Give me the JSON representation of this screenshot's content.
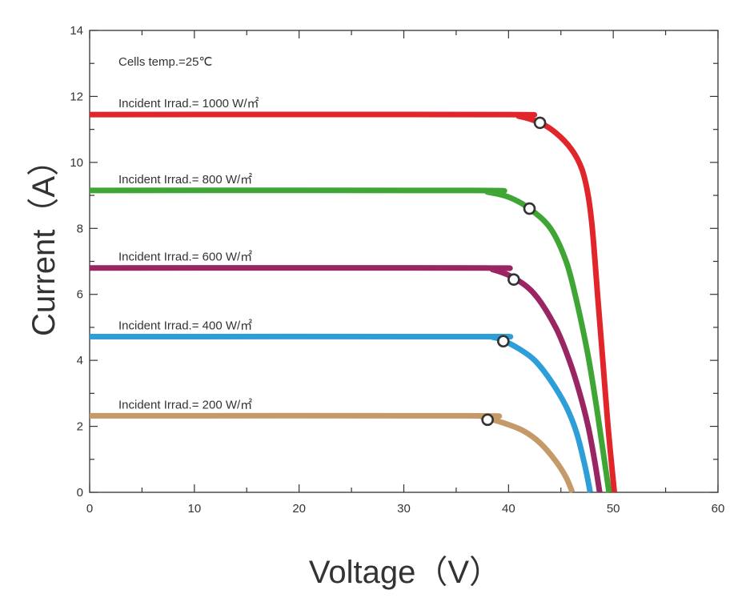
{
  "chart_data": {
    "type": "line",
    "title": "",
    "xlabel": "Voltage（V）",
    "ylabel": "Current（A）",
    "xlim": [
      0,
      60
    ],
    "ylim": [
      0,
      14
    ],
    "x_ticks": [
      0,
      10,
      20,
      30,
      40,
      50,
      60
    ],
    "y_ticks": [
      0,
      2,
      4,
      6,
      8,
      10,
      12,
      14
    ],
    "grid": false,
    "annotations": {
      "cells_temp": "Cells temp.=25℃"
    },
    "series": [
      {
        "name": "Incident Irrad.= 1000 W/㎡",
        "color": "#e0262b",
        "isc": 11.45,
        "points": [
          [
            0,
            11.45
          ],
          [
            39,
            11.45
          ],
          [
            41,
            11.4
          ],
          [
            43,
            11.2
          ],
          [
            44.5,
            10.9
          ],
          [
            46,
            10.4
          ],
          [
            47,
            9.8
          ],
          [
            47.6,
            9.0
          ],
          [
            48,
            8.0
          ],
          [
            48.5,
            6.0
          ],
          [
            49,
            4.0
          ],
          [
            49.5,
            2.0
          ],
          [
            50.1,
            0
          ]
        ],
        "mpp": [
          43,
          11.2
        ]
      },
      {
        "name": "Incident Irrad.= 800 W/㎡",
        "color": "#3fa535",
        "isc": 9.15,
        "points": [
          [
            0,
            9.15
          ],
          [
            36.5,
            9.15
          ],
          [
            38,
            9.1
          ],
          [
            40,
            8.95
          ],
          [
            42,
            8.6
          ],
          [
            44,
            8.0
          ],
          [
            45.5,
            7.0
          ],
          [
            46.5,
            5.8
          ],
          [
            47.5,
            4.3
          ],
          [
            48.3,
            2.8
          ],
          [
            49,
            1.3
          ],
          [
            49.6,
            0
          ]
        ],
        "mpp": [
          42,
          8.6
        ]
      },
      {
        "name": "Incident Irrad.= 600 W/㎡",
        "color": "#9a2563",
        "isc": 6.8,
        "points": [
          [
            0,
            6.8
          ],
          [
            37,
            6.8
          ],
          [
            38.5,
            6.75
          ],
          [
            40.5,
            6.5
          ],
          [
            42.5,
            6.0
          ],
          [
            44.5,
            5.0
          ],
          [
            45.8,
            4.0
          ],
          [
            46.8,
            3.0
          ],
          [
            47.6,
            2.0
          ],
          [
            48.2,
            1.0
          ],
          [
            48.7,
            0
          ]
        ],
        "mpp": [
          40.5,
          6.45
        ]
      },
      {
        "name": "Incident Irrad.= 400 W/㎡",
        "color": "#2d9ed8",
        "isc": 4.72,
        "points": [
          [
            0,
            4.72
          ],
          [
            37,
            4.72
          ],
          [
            38.5,
            4.7
          ],
          [
            39.5,
            4.6
          ],
          [
            41,
            4.35
          ],
          [
            42.5,
            4.0
          ],
          [
            44,
            3.4
          ],
          [
            45.5,
            2.6
          ],
          [
            46.5,
            1.8
          ],
          [
            47.3,
            0.8
          ],
          [
            47.8,
            0
          ]
        ],
        "mpp": [
          39.5,
          4.58
        ]
      },
      {
        "name": "Incident Irrad.= 200 W/㎡",
        "color": "#c49a68",
        "isc": 2.32,
        "points": [
          [
            0,
            2.32
          ],
          [
            36,
            2.32
          ],
          [
            37.5,
            2.28
          ],
          [
            38.5,
            2.2
          ],
          [
            40,
            2.05
          ],
          [
            41.5,
            1.85
          ],
          [
            43,
            1.5
          ],
          [
            44.5,
            0.95
          ],
          [
            45.5,
            0.45
          ],
          [
            46.1,
            0
          ]
        ],
        "mpp": [
          38,
          2.2
        ]
      }
    ]
  }
}
